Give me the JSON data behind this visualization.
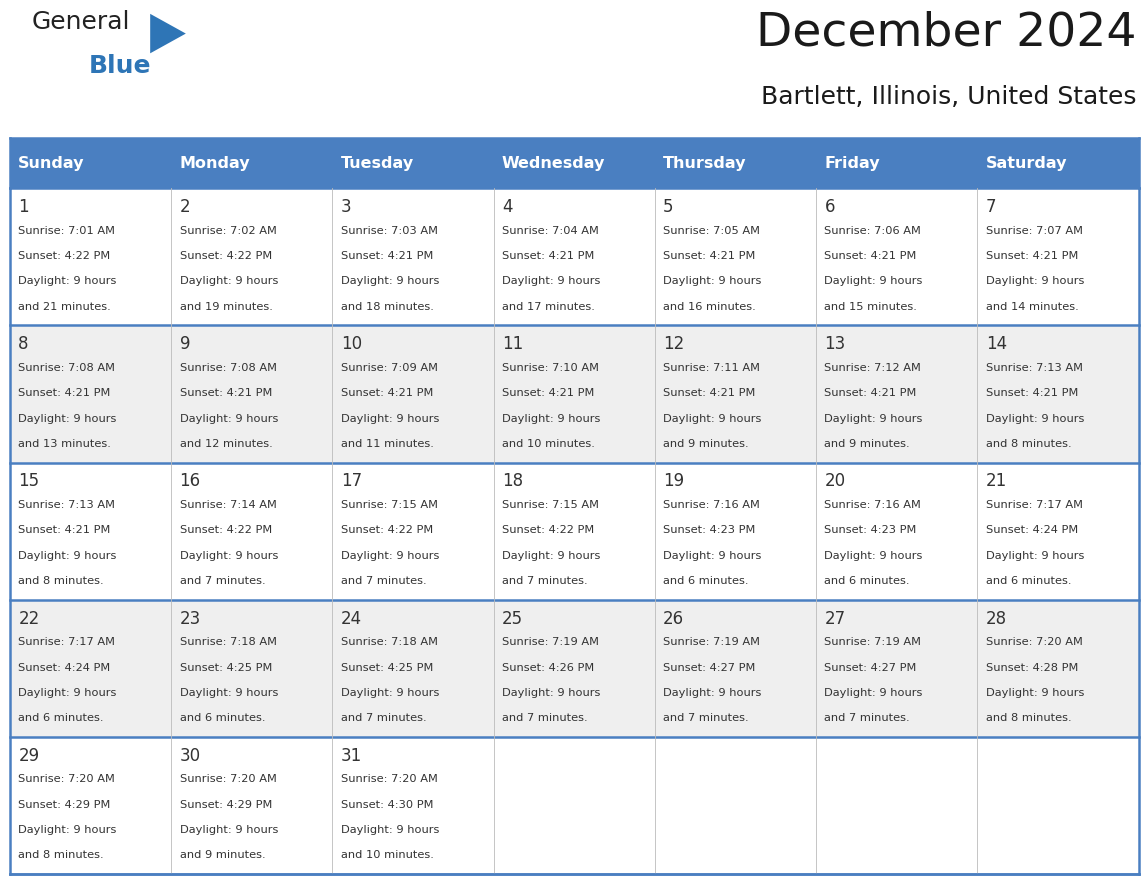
{
  "title": "December 2024",
  "subtitle": "Bartlett, Illinois, United States",
  "header_color": "#4a7fc1",
  "header_text_color": "#FFFFFF",
  "day_names": [
    "Sunday",
    "Monday",
    "Tuesday",
    "Wednesday",
    "Thursday",
    "Friday",
    "Saturday"
  ],
  "bg_color": "#FFFFFF",
  "cell_bg_white": "#FFFFFF",
  "cell_bg_gray": "#EFEFEF",
  "border_color": "#4a7fc1",
  "text_color": "#333333",
  "days": [
    {
      "day": 1,
      "col": 0,
      "row": 0,
      "sunrise": "7:01 AM",
      "sunset": "4:22 PM",
      "daylight_min": "21"
    },
    {
      "day": 2,
      "col": 1,
      "row": 0,
      "sunrise": "7:02 AM",
      "sunset": "4:22 PM",
      "daylight_min": "19"
    },
    {
      "day": 3,
      "col": 2,
      "row": 0,
      "sunrise": "7:03 AM",
      "sunset": "4:21 PM",
      "daylight_min": "18"
    },
    {
      "day": 4,
      "col": 3,
      "row": 0,
      "sunrise": "7:04 AM",
      "sunset": "4:21 PM",
      "daylight_min": "17"
    },
    {
      "day": 5,
      "col": 4,
      "row": 0,
      "sunrise": "7:05 AM",
      "sunset": "4:21 PM",
      "daylight_min": "16"
    },
    {
      "day": 6,
      "col": 5,
      "row": 0,
      "sunrise": "7:06 AM",
      "sunset": "4:21 PM",
      "daylight_min": "15"
    },
    {
      "day": 7,
      "col": 6,
      "row": 0,
      "sunrise": "7:07 AM",
      "sunset": "4:21 PM",
      "daylight_min": "14"
    },
    {
      "day": 8,
      "col": 0,
      "row": 1,
      "sunrise": "7:08 AM",
      "sunset": "4:21 PM",
      "daylight_min": "13"
    },
    {
      "day": 9,
      "col": 1,
      "row": 1,
      "sunrise": "7:08 AM",
      "sunset": "4:21 PM",
      "daylight_min": "12"
    },
    {
      "day": 10,
      "col": 2,
      "row": 1,
      "sunrise": "7:09 AM",
      "sunset": "4:21 PM",
      "daylight_min": "11"
    },
    {
      "day": 11,
      "col": 3,
      "row": 1,
      "sunrise": "7:10 AM",
      "sunset": "4:21 PM",
      "daylight_min": "10"
    },
    {
      "day": 12,
      "col": 4,
      "row": 1,
      "sunrise": "7:11 AM",
      "sunset": "4:21 PM",
      "daylight_min": "9"
    },
    {
      "day": 13,
      "col": 5,
      "row": 1,
      "sunrise": "7:12 AM",
      "sunset": "4:21 PM",
      "daylight_min": "9"
    },
    {
      "day": 14,
      "col": 6,
      "row": 1,
      "sunrise": "7:13 AM",
      "sunset": "4:21 PM",
      "daylight_min": "8"
    },
    {
      "day": 15,
      "col": 0,
      "row": 2,
      "sunrise": "7:13 AM",
      "sunset": "4:21 PM",
      "daylight_min": "8"
    },
    {
      "day": 16,
      "col": 1,
      "row": 2,
      "sunrise": "7:14 AM",
      "sunset": "4:22 PM",
      "daylight_min": "7"
    },
    {
      "day": 17,
      "col": 2,
      "row": 2,
      "sunrise": "7:15 AM",
      "sunset": "4:22 PM",
      "daylight_min": "7"
    },
    {
      "day": 18,
      "col": 3,
      "row": 2,
      "sunrise": "7:15 AM",
      "sunset": "4:22 PM",
      "daylight_min": "7"
    },
    {
      "day": 19,
      "col": 4,
      "row": 2,
      "sunrise": "7:16 AM",
      "sunset": "4:23 PM",
      "daylight_min": "6"
    },
    {
      "day": 20,
      "col": 5,
      "row": 2,
      "sunrise": "7:16 AM",
      "sunset": "4:23 PM",
      "daylight_min": "6"
    },
    {
      "day": 21,
      "col": 6,
      "row": 2,
      "sunrise": "7:17 AM",
      "sunset": "4:24 PM",
      "daylight_min": "6"
    },
    {
      "day": 22,
      "col": 0,
      "row": 3,
      "sunrise": "7:17 AM",
      "sunset": "4:24 PM",
      "daylight_min": "6"
    },
    {
      "day": 23,
      "col": 1,
      "row": 3,
      "sunrise": "7:18 AM",
      "sunset": "4:25 PM",
      "daylight_min": "6"
    },
    {
      "day": 24,
      "col": 2,
      "row": 3,
      "sunrise": "7:18 AM",
      "sunset": "4:25 PM",
      "daylight_min": "7"
    },
    {
      "day": 25,
      "col": 3,
      "row": 3,
      "sunrise": "7:19 AM",
      "sunset": "4:26 PM",
      "daylight_min": "7"
    },
    {
      "day": 26,
      "col": 4,
      "row": 3,
      "sunrise": "7:19 AM",
      "sunset": "4:27 PM",
      "daylight_min": "7"
    },
    {
      "day": 27,
      "col": 5,
      "row": 3,
      "sunrise": "7:19 AM",
      "sunset": "4:27 PM",
      "daylight_min": "7"
    },
    {
      "day": 28,
      "col": 6,
      "row": 3,
      "sunrise": "7:20 AM",
      "sunset": "4:28 PM",
      "daylight_min": "8"
    },
    {
      "day": 29,
      "col": 0,
      "row": 4,
      "sunrise": "7:20 AM",
      "sunset": "4:29 PM",
      "daylight_min": "8"
    },
    {
      "day": 30,
      "col": 1,
      "row": 4,
      "sunrise": "7:20 AM",
      "sunset": "4:29 PM",
      "daylight_min": "9"
    },
    {
      "day": 31,
      "col": 2,
      "row": 4,
      "sunrise": "7:20 AM",
      "sunset": "4:30 PM",
      "daylight_min": "10"
    }
  ]
}
